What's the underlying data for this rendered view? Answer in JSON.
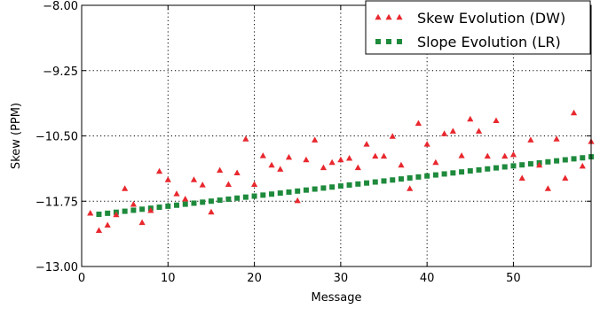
{
  "chart_data": {
    "type": "scatter",
    "title": "",
    "xlabel": "Message",
    "ylabel": "Skew (PPM)",
    "xlim": [
      0,
      59
    ],
    "ylim": [
      -13.0,
      -8.0
    ],
    "x_ticks": [
      0,
      10,
      20,
      30,
      40,
      50
    ],
    "y_ticks": [
      -13.0,
      -11.75,
      -10.5,
      -9.25,
      -8.0
    ],
    "y_tick_labels": [
      "−13.00",
      "−11.75",
      "−10.50",
      "−9.25",
      "−8.00"
    ],
    "grid": true,
    "legend_position": "top-right",
    "series": [
      {
        "name": "Skew Evolution (DW)",
        "marker": "triangle",
        "color": "#e8282e",
        "x": [
          1,
          2,
          3,
          4,
          5,
          6,
          7,
          8,
          9,
          10,
          11,
          12,
          13,
          14,
          15,
          16,
          17,
          18,
          19,
          20,
          21,
          22,
          23,
          24,
          25,
          26,
          27,
          28,
          29,
          30,
          31,
          32,
          33,
          34,
          35,
          36,
          37,
          38,
          39,
          40,
          41,
          42,
          43,
          44,
          45,
          46,
          47,
          48,
          49,
          50,
          51,
          52,
          53,
          54,
          55,
          56,
          57,
          58,
          59
        ],
        "y": [
          -11.97,
          -12.3,
          -12.2,
          -12.0,
          -11.5,
          -11.8,
          -12.15,
          -11.92,
          -11.17,
          -11.33,
          -11.6,
          -11.7,
          -11.33,
          -11.43,
          -11.95,
          -11.15,
          -11.42,
          -11.2,
          -10.55,
          -11.42,
          -10.87,
          -11.05,
          -11.13,
          -10.9,
          -11.73,
          -10.95,
          -10.57,
          -11.1,
          -11.0,
          -10.95,
          -10.92,
          -11.1,
          -10.65,
          -10.88,
          -10.88,
          -10.5,
          -11.05,
          -11.5,
          -10.25,
          -10.65,
          -11.0,
          -10.45,
          -10.4,
          -10.87,
          -10.17,
          -10.4,
          -10.88,
          -10.2,
          -10.88,
          -10.85,
          -11.3,
          -10.57,
          -11.05,
          -11.5,
          -10.55,
          -11.3,
          -10.05,
          -11.07,
          -10.6
        ]
      },
      {
        "name": "Slope Evolution (LR)",
        "marker": "square",
        "color": "#1e8a3c",
        "x_start": 2,
        "x_end": 59,
        "x_step": 1,
        "y_start": -12.0,
        "y_end": -10.9
      }
    ]
  }
}
